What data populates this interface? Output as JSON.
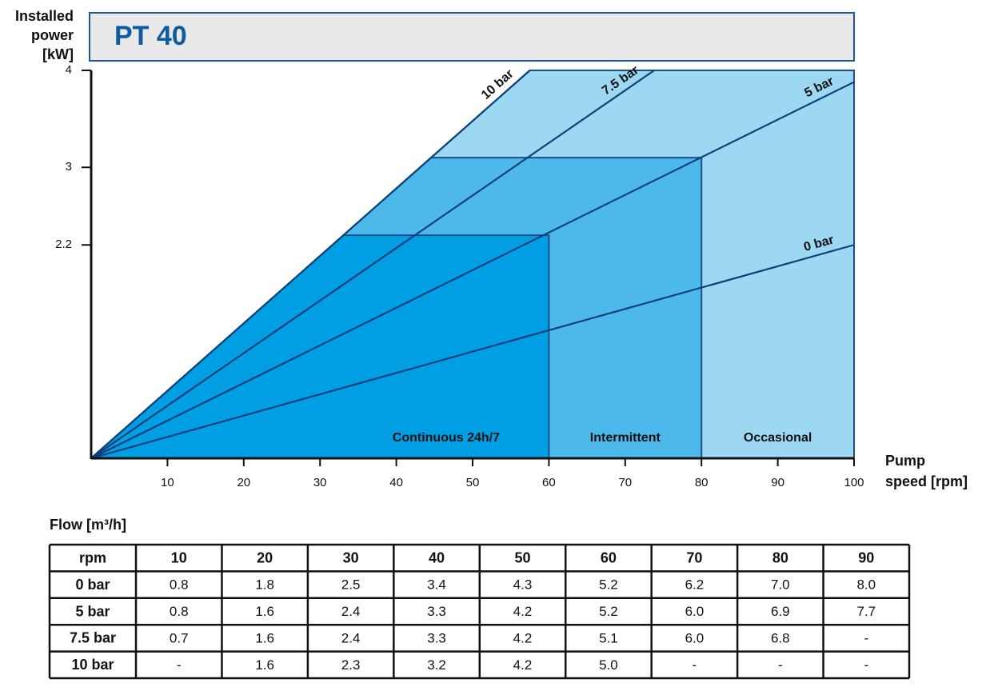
{
  "chart_data": {
    "type": "area",
    "title": "PT 40",
    "ylabel": [
      "Installed",
      "power",
      "[kW]"
    ],
    "xlabel": [
      "Pump",
      "speed [rpm]"
    ],
    "xlim": [
      0,
      100
    ],
    "xticks": [
      10,
      20,
      30,
      40,
      50,
      60,
      70,
      80,
      90,
      100
    ],
    "ylim": [
      0,
      4
    ],
    "yticks": [
      2.2,
      3,
      4
    ],
    "regions": [
      {
        "label": "Continuous 24h/7",
        "rpm_max": 60,
        "kw_max": 2.3,
        "color": "#009fe3"
      },
      {
        "label": "Intermittent",
        "rpm_max": 80,
        "kw_max": 3.1,
        "color": "#4db9ea"
      },
      {
        "label": "Occasional",
        "rpm_max": 100,
        "kw_max": 4,
        "color": "#9dd8f3"
      }
    ],
    "series": [
      {
        "name": "10 bar",
        "color": "#0d3f7a",
        "x": [
          0,
          57.5
        ],
        "values": [
          0,
          4
        ]
      },
      {
        "name": "7.5 bar",
        "color": "#0d3f7a",
        "x": [
          0,
          73.8
        ],
        "values": [
          0,
          4
        ]
      },
      {
        "name": "5 bar",
        "color": "#0d3f7a",
        "x": [
          0,
          100
        ],
        "values": [
          0,
          3.88
        ]
      },
      {
        "name": "0 bar",
        "color": "#0d3f7a",
        "x": [
          0,
          100
        ],
        "values": [
          0,
          2.2
        ]
      }
    ]
  },
  "table": {
    "caption": "Flow [m³/h]",
    "header": [
      "rpm",
      "10",
      "20",
      "30",
      "40",
      "50",
      "60",
      "70",
      "80",
      "90"
    ],
    "rows": [
      [
        "0 bar",
        "0.8",
        "1.8",
        "2.5",
        "3.4",
        "4.3",
        "5.2",
        "6.2",
        "7.0",
        "8.0"
      ],
      [
        "5 bar",
        "0.8",
        "1.6",
        "2.4",
        "3.3",
        "4.2",
        "5.2",
        "6.0",
        "6.9",
        "7.7"
      ],
      [
        "7.5 bar",
        "0.7",
        "1.6",
        "2.4",
        "3.3",
        "4.2",
        "5.1",
        "6.0",
        "6.8",
        "-"
      ],
      [
        "10 bar",
        "-",
        "1.6",
        "2.3",
        "3.2",
        "4.2",
        "5.0",
        "-",
        "-",
        "-"
      ]
    ]
  }
}
